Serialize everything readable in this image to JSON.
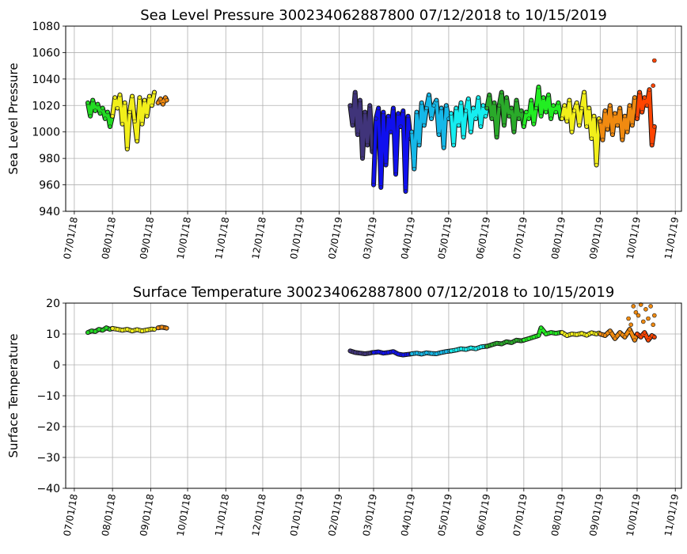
{
  "chart_data": [
    {
      "type": "scatter",
      "title": "Sea Level Pressure 300234062887800  07/12/2018 to 10/15/2019",
      "xlabel": "",
      "ylabel": "Sea Level Pressure",
      "xlim": [
        -7,
        493
      ],
      "ylim": [
        940,
        1080
      ],
      "yticks": [
        "940",
        "960",
        "980",
        "1000",
        "1020",
        "1040",
        "1060",
        "1080"
      ],
      "grid": true,
      "xticks": [
        {
          "day": 0,
          "label": "07/01/18"
        },
        {
          "day": 31,
          "label": "08/01/18"
        },
        {
          "day": 62,
          "label": "09/01/18"
        },
        {
          "day": 92,
          "label": "10/01/18"
        },
        {
          "day": 123,
          "label": "11/01/18"
        },
        {
          "day": 153,
          "label": "12/01/18"
        },
        {
          "day": 184,
          "label": "01/01/19"
        },
        {
          "day": 215,
          "label": "02/01/19"
        },
        {
          "day": 243,
          "label": "03/01/19"
        },
        {
          "day": 274,
          "label": "04/01/19"
        },
        {
          "day": 304,
          "label": "05/01/19"
        },
        {
          "day": 335,
          "label": "06/01/19"
        },
        {
          "day": 365,
          "label": "07/01/19"
        },
        {
          "day": 396,
          "label": "08/01/19"
        },
        {
          "day": 427,
          "label": "09/01/19"
        },
        {
          "day": 457,
          "label": "10/01/19"
        },
        {
          "day": 488,
          "label": "11/01/19"
        }
      ],
      "series": [
        {
          "name": "seg1",
          "color": "#22dd22",
          "x": [
            11,
            13,
            15,
            17,
            19,
            21,
            23,
            25,
            27,
            29,
            31
          ],
          "y": [
            1022,
            1012,
            1024,
            1016,
            1021,
            1014,
            1018,
            1010,
            1015,
            1004,
            1012
          ]
        },
        {
          "name": "seg2",
          "color": "#f2ef1a",
          "x": [
            31,
            33,
            35,
            37,
            39,
            41,
            43,
            45,
            47,
            49,
            51,
            53,
            55,
            57,
            59,
            61,
            63,
            65
          ],
          "y": [
            1012,
            1026,
            1018,
            1028,
            1006,
            1022,
            987,
            1015,
            1027,
            1008,
            993,
            1026,
            1006,
            1024,
            1012,
            1027,
            1020,
            1030
          ]
        },
        {
          "name": "seg3",
          "color": "#f08a10",
          "x": [
            68,
            70,
            72,
            74,
            75
          ],
          "y": [
            1022,
            1025,
            1021,
            1026,
            1024
          ]
        },
        {
          "name": "seg4",
          "color": "#40347a",
          "x": [
            224,
            226,
            228,
            230,
            232,
            234,
            236,
            238,
            240,
            242
          ],
          "y": [
            1020,
            1005,
            1030,
            998,
            1024,
            980,
            1015,
            990,
            1020,
            985
          ]
        },
        {
          "name": "seg5",
          "color": "#1010ee",
          "x": [
            243,
            245,
            247,
            249,
            251,
            253,
            255,
            257,
            259,
            261,
            263,
            265,
            267,
            269,
            271,
            273
          ],
          "y": [
            960,
            1010,
            1018,
            958,
            1015,
            975,
            1012,
            1000,
            1018,
            968,
            1014,
            1004,
            1016,
            955,
            1012,
            995
          ]
        },
        {
          "name": "seg6",
          "color": "#15b8e8",
          "x": [
            274,
            276,
            278,
            280,
            282,
            284,
            286,
            288,
            290,
            292,
            294,
            296,
            298,
            300,
            302,
            304,
            306
          ],
          "y": [
            1000,
            972,
            1015,
            990,
            1022,
            1005,
            1018,
            1028,
            1010,
            1020,
            1024,
            998,
            1018,
            988,
            1020,
            1010,
            1014
          ]
        },
        {
          "name": "seg7",
          "color": "#15eef0",
          "x": [
            306,
            308,
            310,
            312,
            314,
            316,
            318,
            320,
            322,
            324,
            326,
            328,
            330,
            332,
            334,
            335
          ],
          "y": [
            1014,
            990,
            1018,
            1005,
            1022,
            996,
            1016,
            1025,
            1000,
            1018,
            1010,
            1026,
            1004,
            1020,
            1012,
            1018
          ]
        },
        {
          "name": "seg8",
          "color": "#2aaa2a",
          "x": [
            335,
            337,
            339,
            341,
            343,
            345,
            347,
            349,
            351,
            353,
            355,
            357,
            359,
            361,
            363,
            365
          ],
          "y": [
            1018,
            1028,
            1010,
            1022,
            996,
            1020,
            1030,
            1005,
            1026,
            1012,
            1018,
            1000,
            1024,
            1010,
            1016,
            1004
          ]
        },
        {
          "name": "seg9",
          "color": "#22ee22",
          "x": [
            365,
            367,
            369,
            371,
            373,
            375,
            377,
            379,
            381,
            383,
            385,
            387,
            389,
            391,
            393,
            395
          ],
          "y": [
            1004,
            1015,
            1010,
            1024,
            1006,
            1018,
            1034,
            1012,
            1026,
            1015,
            1028,
            1010,
            1020,
            1015,
            1022,
            1010
          ]
        },
        {
          "name": "seg10",
          "color": "#f2ef1a",
          "x": [
            396,
            398,
            400,
            402,
            404,
            406,
            408,
            410,
            412,
            414,
            416,
            418,
            420,
            422,
            424,
            426
          ],
          "y": [
            1010,
            1020,
            1008,
            1024,
            1000,
            1016,
            1022,
            1005,
            1018,
            1030,
            1004,
            1018,
            995,
            1012,
            975,
            1010
          ]
        },
        {
          "name": "seg11",
          "color": "#f08a10",
          "x": [
            427,
            429,
            431,
            433,
            435,
            437,
            439,
            441,
            443,
            445,
            447,
            449,
            451,
            453,
            455,
            457
          ],
          "y": [
            1008,
            994,
            1016,
            1002,
            1020,
            998,
            1014,
            1005,
            1018,
            994,
            1012,
            1000,
            1020,
            1005,
            1026,
            1010
          ]
        },
        {
          "name": "seg12",
          "color": "#ff4400",
          "x": [
            457,
            459,
            461,
            463,
            465,
            467,
            469,
            471
          ],
          "y": [
            1010,
            1030,
            1015,
            1026,
            1020,
            1032,
            990,
            1004
          ]
        },
        {
          "name": "slp-outliers",
          "color": "#ff4400",
          "x": [
            471,
            470
          ],
          "y": [
            1054,
            1035
          ]
        }
      ]
    },
    {
      "type": "scatter",
      "title": "Surface Temperature 300234062887800  07/12/2018 to 10/15/2019",
      "xlabel": "",
      "ylabel": "Surface Temperature",
      "xlim": [
        -7,
        493
      ],
      "ylim": [
        -40,
        20
      ],
      "yticks": [
        "−40",
        "−30",
        "−20",
        "−10",
        "0",
        "10",
        "20"
      ],
      "grid": true,
      "xticks": [
        {
          "day": 0,
          "label": "07/01/18"
        },
        {
          "day": 31,
          "label": "08/01/18"
        },
        {
          "day": 62,
          "label": "09/01/18"
        },
        {
          "day": 92,
          "label": "10/01/18"
        },
        {
          "day": 123,
          "label": "11/01/18"
        },
        {
          "day": 153,
          "label": "12/01/18"
        },
        {
          "day": 184,
          "label": "01/01/19"
        },
        {
          "day": 215,
          "label": "02/01/19"
        },
        {
          "day": 243,
          "label": "03/01/19"
        },
        {
          "day": 274,
          "label": "04/01/19"
        },
        {
          "day": 304,
          "label": "05/01/19"
        },
        {
          "day": 335,
          "label": "06/01/19"
        },
        {
          "day": 365,
          "label": "07/01/19"
        },
        {
          "day": 396,
          "label": "08/01/19"
        },
        {
          "day": 427,
          "label": "09/01/19"
        },
        {
          "day": 457,
          "label": "10/01/19"
        },
        {
          "day": 488,
          "label": "11/01/19"
        }
      ],
      "series": [
        {
          "name": "seg1",
          "color": "#22dd22",
          "x": [
            11,
            14,
            17,
            20,
            23,
            26,
            29,
            31
          ],
          "y": [
            10.5,
            11,
            10.8,
            11.5,
            11.2,
            12,
            11.5,
            11.8
          ]
        },
        {
          "name": "seg2",
          "color": "#f2ef1a",
          "x": [
            31,
            35,
            39,
            43,
            47,
            51,
            55,
            59,
            63,
            65
          ],
          "y": [
            11.8,
            11.5,
            11.2,
            11.5,
            11,
            11.4,
            11,
            11.3,
            11.6,
            11.5
          ]
        },
        {
          "name": "seg3",
          "color": "#f08a10",
          "x": [
            68,
            71,
            74,
            75
          ],
          "y": [
            12,
            12.2,
            12,
            11.9
          ]
        },
        {
          "name": "seg4",
          "color": "#40347a",
          "x": [
            224,
            228,
            232,
            236,
            240,
            242
          ],
          "y": [
            4.5,
            4,
            3.8,
            3.6,
            3.8,
            4
          ]
        },
        {
          "name": "seg5",
          "color": "#1010ee",
          "x": [
            243,
            247,
            251,
            255,
            259,
            263,
            267,
            271,
            273
          ],
          "y": [
            4,
            4.2,
            3.8,
            4,
            4.3,
            3.5,
            3.2,
            3.4,
            3.5
          ]
        },
        {
          "name": "seg6",
          "color": "#15b8e8",
          "x": [
            274,
            278,
            282,
            286,
            290,
            294,
            298,
            302,
            306
          ],
          "y": [
            3.6,
            3.8,
            3.5,
            3.9,
            3.7,
            3.6,
            4,
            4.3,
            4.5
          ]
        },
        {
          "name": "seg7",
          "color": "#15eef0",
          "x": [
            306,
            310,
            314,
            318,
            322,
            326,
            330,
            334,
            335
          ],
          "y": [
            4.5,
            4.8,
            5.2,
            5,
            5.5,
            5.2,
            5.8,
            6,
            6
          ]
        },
        {
          "name": "seg8",
          "color": "#2aaa2a",
          "x": [
            335,
            339,
            343,
            347,
            351,
            355,
            359,
            363,
            365
          ],
          "y": [
            6,
            6.5,
            7,
            6.8,
            7.5,
            7.2,
            8,
            7.8,
            8
          ]
        },
        {
          "name": "seg9",
          "color": "#22ee22",
          "x": [
            365,
            369,
            373,
            377,
            379,
            383,
            387,
            391,
            395
          ],
          "y": [
            8,
            8.5,
            9,
            9.5,
            12,
            10,
            10.5,
            10.2,
            10.5
          ]
        },
        {
          "name": "seg10",
          "color": "#f2ef1a",
          "x": [
            396,
            400,
            404,
            408,
            412,
            416,
            420,
            424,
            426
          ],
          "y": [
            10.5,
            9.5,
            10,
            9.8,
            10.2,
            9.6,
            10.4,
            10,
            10.3
          ]
        },
        {
          "name": "seg11",
          "color": "#f08a10",
          "x": [
            427,
            431,
            435,
            439,
            443,
            447,
            451,
            455,
            457
          ],
          "y": [
            10,
            9.5,
            11,
            8.5,
            10.5,
            9,
            11.5,
            8,
            10
          ]
        },
        {
          "name": "seg12",
          "color": "#ff4400",
          "x": [
            457,
            460,
            463,
            466,
            469,
            471
          ],
          "y": [
            10,
            9,
            10.5,
            8,
            9.5,
            9
          ]
        },
        {
          "name": "sst-outliers",
          "color": "#f08a10",
          "x": [
            454,
            456,
            458,
            460,
            462,
            464,
            466,
            468,
            470,
            471,
            450,
            452
          ],
          "y": [
            19,
            17,
            16,
            19.5,
            14,
            18,
            15,
            19,
            13,
            16,
            15,
            13
          ]
        }
      ]
    }
  ]
}
